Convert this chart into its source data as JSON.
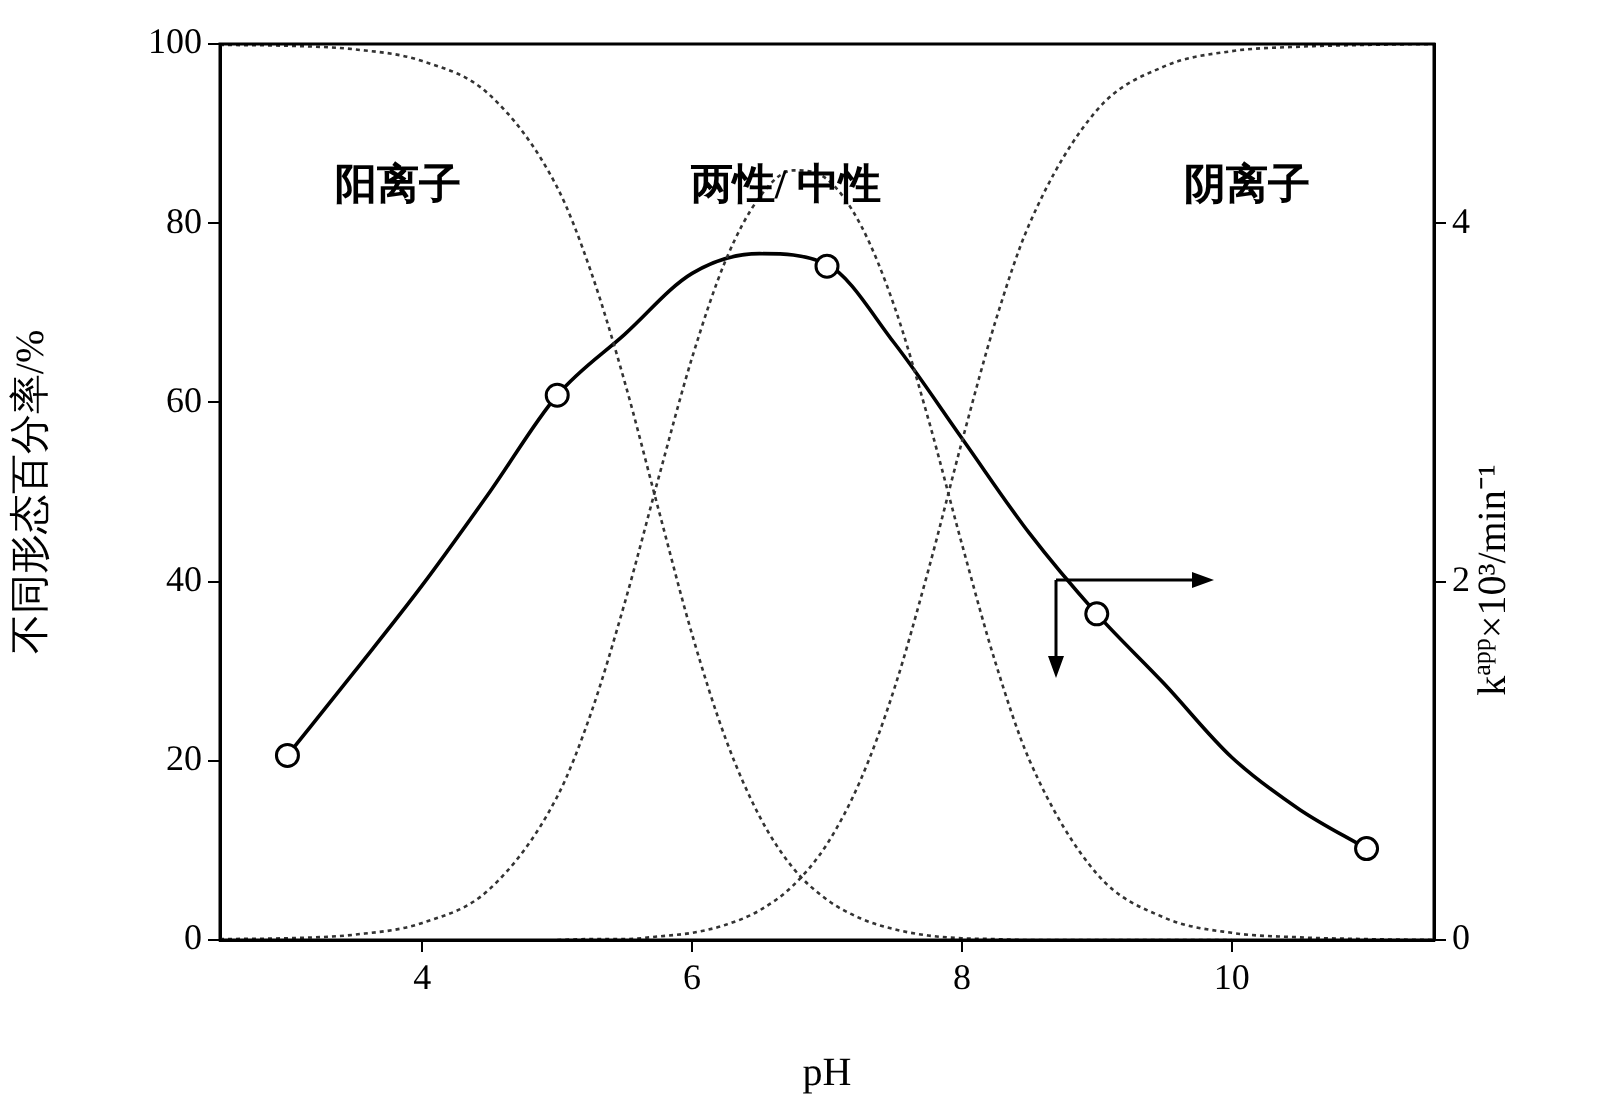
{
  "chart_data": {
    "type": "line",
    "xlabel": "pH",
    "ylabel": "不同形态百分率/%",
    "y2label": "k$^{app}$×10³/min⁻¹",
    "xlim": [
      2.5,
      11.5
    ],
    "xticks": [
      4,
      6,
      8,
      10
    ],
    "ylim": [
      0,
      100
    ],
    "yticks": [
      0,
      20,
      40,
      60,
      80,
      100
    ],
    "y2lim": [
      0,
      5
    ],
    "y2ticks": [
      0,
      2,
      4
    ],
    "series": [
      {
        "type": "line",
        "color": "#333333",
        "line_style": "dotted",
        "marker": "none",
        "x": [
          2.5,
          3,
          3.5,
          4,
          4.5,
          5,
          5.25,
          5.5,
          5.75,
          6,
          6.25,
          6.5,
          6.75,
          7,
          7.25,
          7.5,
          7.75,
          8,
          8.25,
          8.5,
          9,
          9.5,
          10
        ],
        "values": [
          99.9,
          99.8,
          99.4,
          98.1,
          94.3,
          84.0,
          74.6,
          62.3,
          48.1,
          34.1,
          22.4,
          13.8,
          8.0,
          4.5,
          2.4,
          1.2,
          0.5,
          0.2,
          0.1,
          0.0,
          0.0,
          0.0,
          0.0
        ]
      },
      {
        "type": "line",
        "color": "#333333",
        "line_style": "dotted",
        "marker": "none",
        "x": [
          2.5,
          3,
          3.5,
          4,
          4.5,
          5,
          5.25,
          5.5,
          5.75,
          6,
          6.25,
          6.5,
          6.75,
          7,
          7.25,
          7.5,
          7.75,
          8,
          8.25,
          8.5,
          9,
          9.5,
          10,
          10.5,
          11,
          11.5
        ],
        "values": [
          0.1,
          0.2,
          0.6,
          1.9,
          5.7,
          16.0,
          25.3,
          37.6,
          51.5,
          65.0,
          75.9,
          82.9,
          85.9,
          84.9,
          79.8,
          70.7,
          58.2,
          44.2,
          30.9,
          20.1,
          7.4,
          2.5,
          0.8,
          0.3,
          0.1,
          0.0
        ]
      },
      {
        "type": "line",
        "color": "#333333",
        "line_style": "dotted",
        "marker": "none",
        "x": [
          5,
          5.25,
          5.5,
          5.75,
          6,
          6.25,
          6.5,
          6.75,
          7,
          7.25,
          7.5,
          7.75,
          8,
          8.25,
          8.5,
          9,
          9.5,
          10,
          10.5,
          11,
          11.5
        ],
        "values": [
          0.0,
          0.1,
          0.1,
          0.4,
          0.8,
          1.7,
          3.3,
          6.1,
          10.7,
          17.9,
          28.1,
          41.2,
          55.6,
          69.1,
          79.9,
          92.6,
          97.5,
          99.2,
          99.7,
          99.9,
          100.0
        ]
      },
      {
        "type": "line",
        "axis": "y2",
        "color": "#000000",
        "line_style": "solid",
        "marker": "none",
        "x": [
          3,
          3.5,
          4,
          4.5,
          5,
          5.5,
          6,
          6.5,
          7,
          7.5,
          8,
          8.5,
          9,
          9.5,
          10,
          10.5,
          11
        ],
        "values": [
          1.03,
          1.5,
          1.98,
          2.5,
          3.04,
          3.38,
          3.72,
          3.83,
          3.77,
          3.33,
          2.8,
          2.27,
          1.82,
          1.43,
          1.02,
          0.73,
          0.51
        ]
      },
      {
        "type": "scatter",
        "axis": "y2",
        "color": "#000000",
        "marker": "circle",
        "x": [
          3,
          5,
          7,
          9,
          11
        ],
        "values": [
          1.03,
          3.04,
          3.76,
          1.82,
          0.51
        ]
      }
    ],
    "annotations": [
      "阳离子",
      "两性/ 中性",
      "阴离子"
    ]
  }
}
